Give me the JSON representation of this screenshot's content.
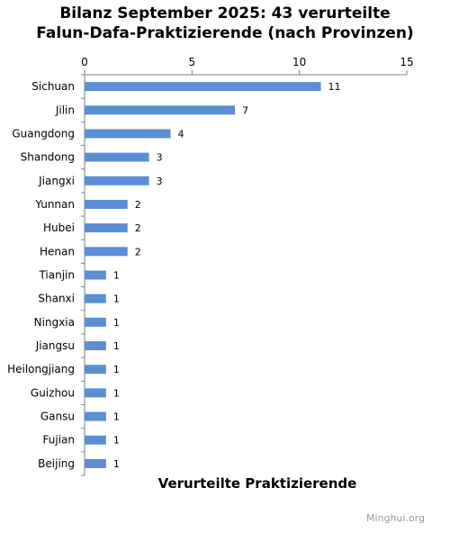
{
  "chart_data": {
    "type": "bar",
    "orientation": "horizontal",
    "title_line1": "Bilanz September 2025: 43 verurteilte",
    "title_line2": "Falun-Dafa-Praktizierende (nach Provinzen)",
    "xlabel": "Verurteilte Praktizierende",
    "xlim": [
      0,
      15
    ],
    "xticks": [
      0,
      5,
      10,
      15
    ],
    "axis_position": "top",
    "grid": false,
    "bar_color": "#5a8fd6",
    "categories": [
      "Sichuan",
      "Jilin",
      "Guangdong",
      "Shandong",
      "Jiangxi",
      "Yunnan",
      "Hubei",
      "Henan",
      "Tianjin",
      "Shanxi",
      "Ningxia",
      "Jiangsu",
      "Heilongjiang",
      "Guizhou",
      "Gansu",
      "Fujian",
      "Beijing"
    ],
    "values": [
      11,
      7,
      4,
      3,
      3,
      2,
      2,
      2,
      1,
      1,
      1,
      1,
      1,
      1,
      1,
      1,
      1
    ]
  },
  "watermark": "Minghui.org"
}
